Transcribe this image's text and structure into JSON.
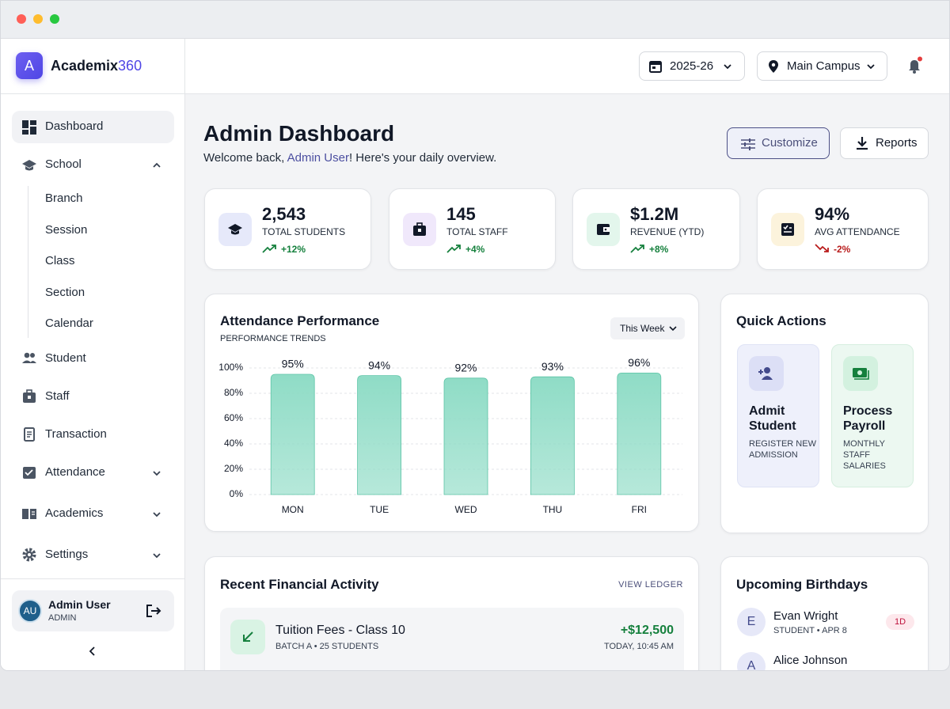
{
  "brand": {
    "logo": "A",
    "name": "Academix",
    "name_suffix": "360"
  },
  "topbar": {
    "session": "2025-26",
    "campus": "Main Campus"
  },
  "sidebar": {
    "items": [
      {
        "label": "Dashboard"
      },
      {
        "label": "School",
        "children": [
          "Branch",
          "Session",
          "Class",
          "Section",
          "Calendar"
        ]
      },
      {
        "label": "Student"
      },
      {
        "label": "Staff"
      },
      {
        "label": "Transaction"
      },
      {
        "label": "Attendance"
      },
      {
        "label": "Academics"
      },
      {
        "label": "Settings"
      }
    ],
    "user": {
      "initials": "AU",
      "name": "Admin User",
      "role": "ADMIN"
    }
  },
  "header": {
    "title": "Admin Dashboard",
    "welcome_prefix": "Welcome back, ",
    "welcome_name": "Admin User",
    "welcome_suffix": "! Here's your daily overview.",
    "buttons": [
      "Customize",
      "Reports"
    ]
  },
  "stats": [
    {
      "value": "2,543",
      "label": "TOTAL STUDENTS",
      "change": "+12%"
    },
    {
      "value": "145",
      "label": "TOTAL STAFF",
      "change": "+4%"
    },
    {
      "value": "$1.2M",
      "label": "REVENUE (YTD)",
      "change": "+8%"
    },
    {
      "value": "94%",
      "label": "AVG ATTENDANCE",
      "change": "-2%"
    }
  ],
  "chart_data": {
    "type": "bar",
    "title": "Attendance Performance",
    "subtitle": "PERFORMANCE TRENDS",
    "period": "This Week",
    "categories": [
      "MON",
      "TUE",
      "WED",
      "THU",
      "FRI"
    ],
    "values": [
      95,
      94,
      92,
      93,
      96
    ],
    "value_labels": [
      "95%",
      "94%",
      "92%",
      "93%",
      "96%"
    ],
    "ylim": [
      0,
      100
    ],
    "yticks": [
      {
        "value": 0,
        "label": "0%"
      },
      {
        "value": 20,
        "label": "20%"
      },
      {
        "value": 40,
        "label": "40%"
      },
      {
        "value": 60,
        "label": "60%"
      },
      {
        "value": 80,
        "label": "80%"
      },
      {
        "value": 100,
        "label": "100%"
      }
    ],
    "color": "#8fdcc6",
    "grid": true
  },
  "quick_actions": {
    "title": "Quick Actions",
    "items": [
      {
        "title": "Admit Student",
        "subtitle": "REGISTER NEW ADMISSION"
      },
      {
        "title": "Process Payroll",
        "subtitle": "MONTHLY STAFF SALARIES"
      }
    ]
  },
  "financial": {
    "title": "Recent Financial Activity",
    "link": "VIEW LEDGER",
    "items": [
      {
        "title": "Tuition Fees - Class 10",
        "detail": "BATCH A • 25 STUDENTS",
        "amount": "+$12,500",
        "time": "TODAY, 10:45 AM"
      }
    ]
  },
  "birthdays": {
    "title": "Upcoming Birthdays",
    "items": [
      {
        "initial": "E",
        "name": "Evan Wright",
        "detail": "STUDENT • APR 8",
        "badge": "1D"
      },
      {
        "initial": "A",
        "name": "Alice Johnson"
      }
    ]
  }
}
